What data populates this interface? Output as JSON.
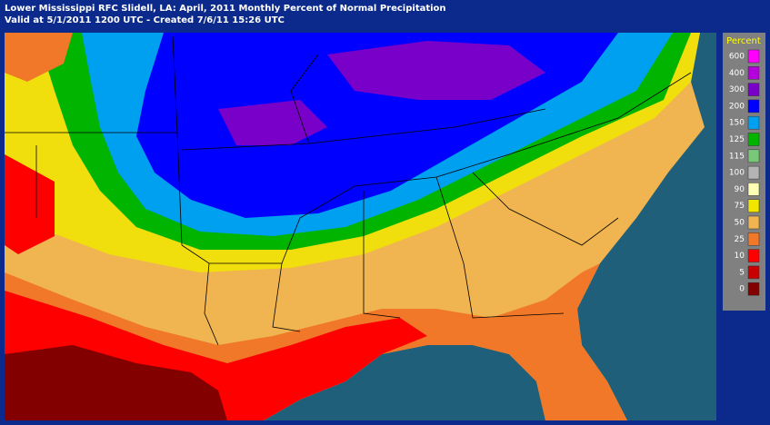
{
  "header": {
    "line1": "Lower Mississippi RFC Slidell, LA: April, 2011 Monthly Percent of Normal Precipitation",
    "line2": "Valid at 5/1/2011 1200 UTC - Created 7/6/11 15:26 UTC"
  },
  "legend": {
    "title": "Percent",
    "items": [
      {
        "label": "600",
        "color": "#ff00ff"
      },
      {
        "label": "400",
        "color": "#b400dc"
      },
      {
        "label": "300",
        "color": "#7800c8"
      },
      {
        "label": "200",
        "color": "#0000ff"
      },
      {
        "label": "150",
        "color": "#00a0f0"
      },
      {
        "label": "125",
        "color": "#00b400"
      },
      {
        "label": "115",
        "color": "#78c878"
      },
      {
        "label": "100",
        "color": "#b4b4b4"
      },
      {
        "label": "90",
        "color": "#ffffb4"
      },
      {
        "label": "75",
        "color": "#f0e600"
      },
      {
        "label": "50",
        "color": "#f0b450"
      },
      {
        "label": "25",
        "color": "#f07828"
      },
      {
        "label": "10",
        "color": "#ff0000"
      },
      {
        "label": "5",
        "color": "#c80000"
      },
      {
        "label": "0",
        "color": "#820000"
      }
    ]
  }
}
